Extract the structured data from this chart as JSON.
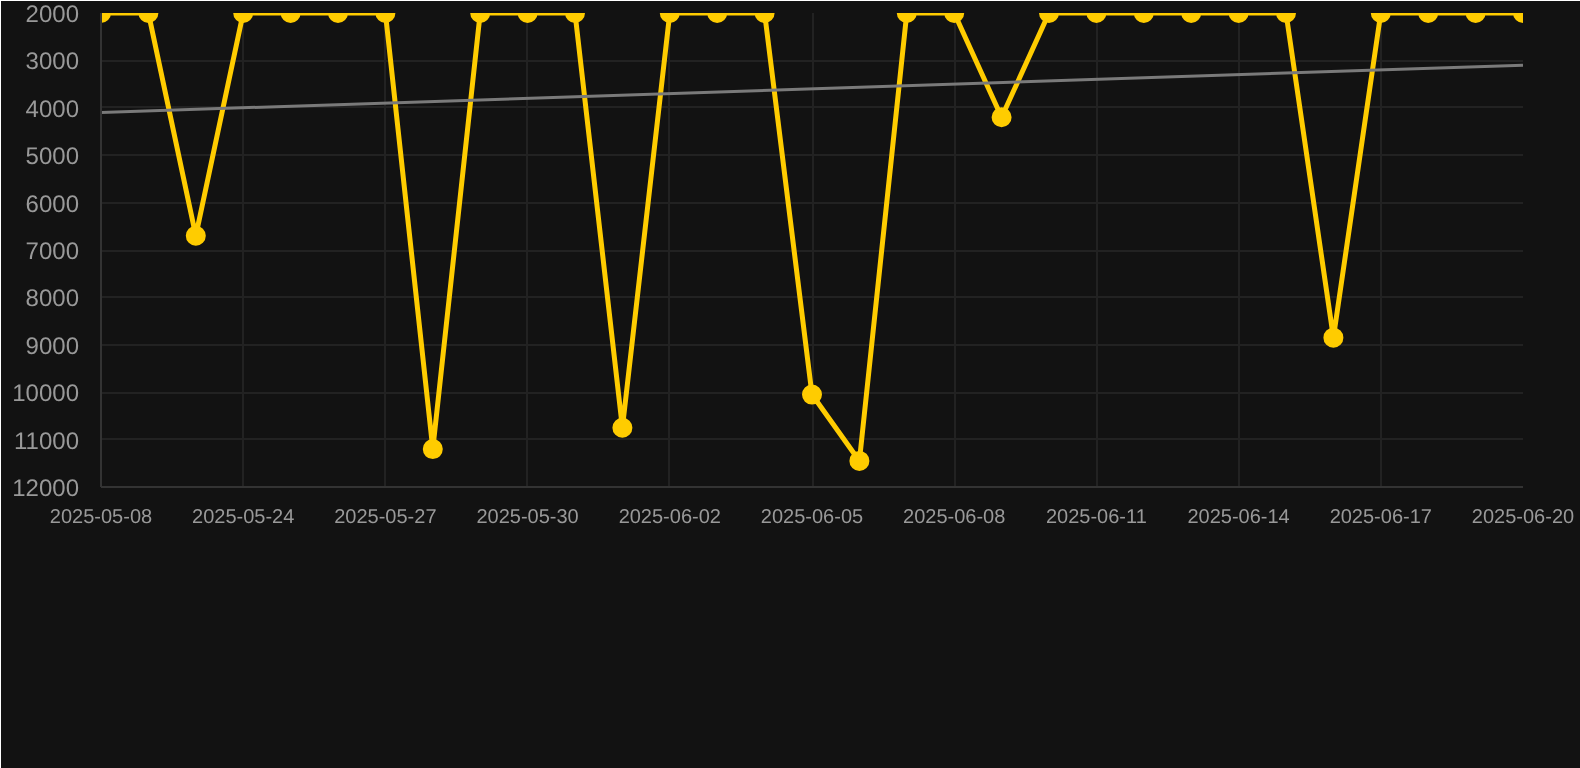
{
  "chart_data": {
    "type": "line",
    "categories": [
      "2025-05-08",
      null,
      null,
      "2025-05-24",
      null,
      null,
      "2025-05-27",
      null,
      null,
      "2025-05-30",
      null,
      null,
      "2025-06-02",
      null,
      null,
      "2025-06-05",
      null,
      null,
      "2025-06-08",
      null,
      null,
      "2025-06-11",
      null,
      null,
      "2025-06-14",
      null,
      null,
      "2025-06-17",
      null,
      null,
      "2025-06-20"
    ],
    "series": [
      {
        "color": "#ffcc00",
        "marker": "circle",
        "values": [
          2000,
          2000,
          6700,
          2000,
          2000,
          2000,
          2000,
          11200,
          2000,
          2000,
          2000,
          10750,
          2000,
          2000,
          2000,
          10050,
          11450,
          2000,
          2000,
          4200,
          2000,
          2000,
          2000,
          2000,
          2000,
          2000,
          8850,
          2000,
          2000,
          2000,
          2000
        ]
      },
      {
        "color": "#7a7a7a",
        "marker": "none",
        "values": [
          4100,
          null,
          null,
          null,
          null,
          null,
          null,
          null,
          null,
          null,
          null,
          null,
          null,
          null,
          null,
          null,
          null,
          null,
          null,
          null,
          null,
          null,
          null,
          null,
          null,
          null,
          null,
          null,
          null,
          null,
          3100
        ]
      }
    ],
    "ylim": [
      12000,
      2000
    ],
    "yticks": [
      2000,
      3000,
      4000,
      5000,
      6000,
      7000,
      8000,
      9000,
      10000,
      11000,
      12000
    ],
    "grid": true
  }
}
